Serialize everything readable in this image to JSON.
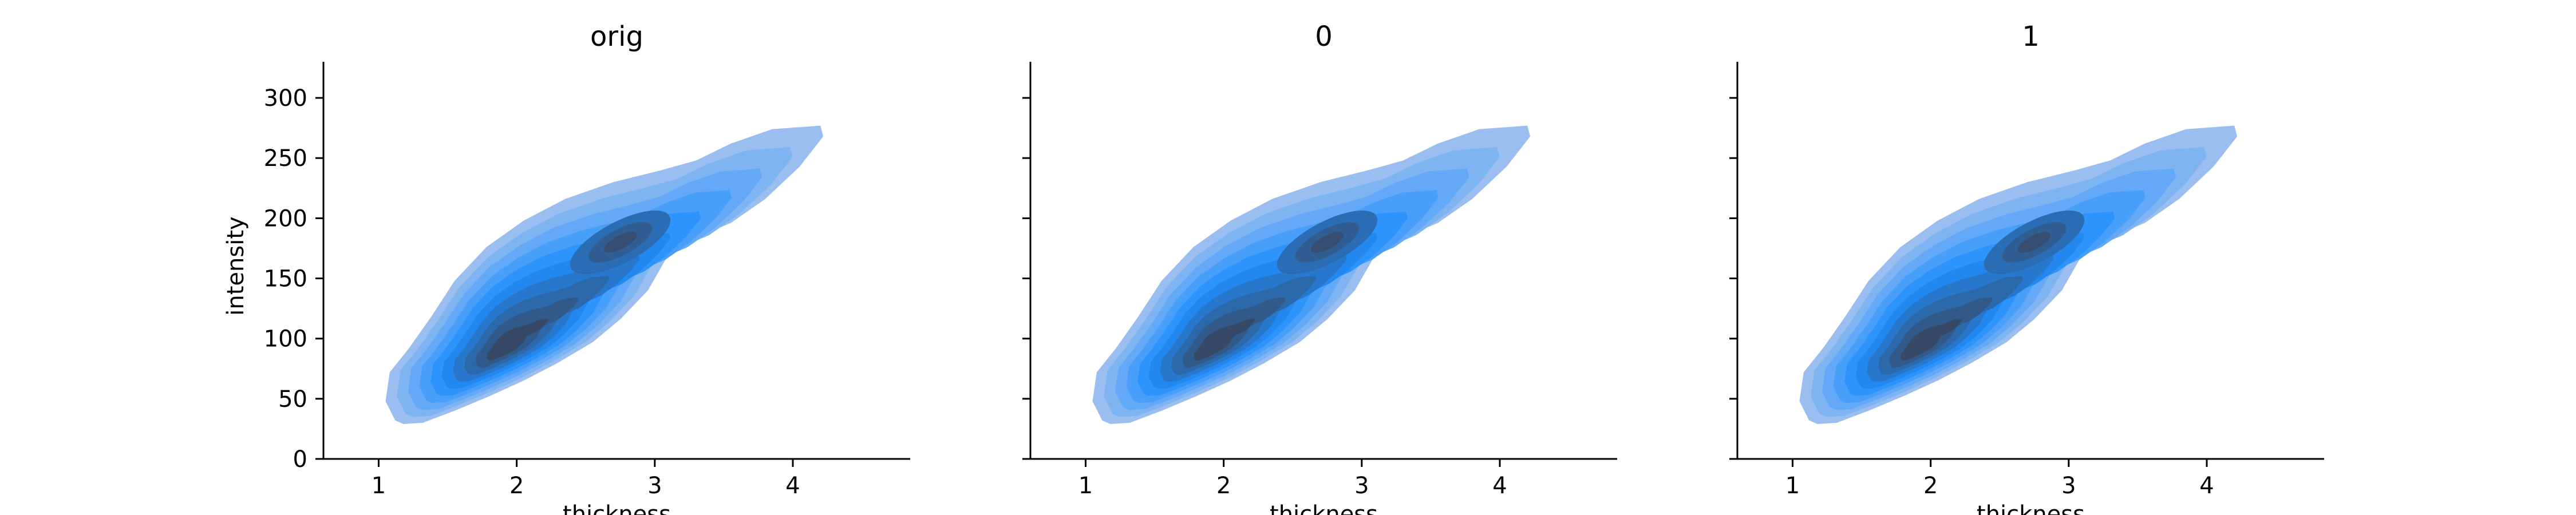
{
  "chart_data": [
    {
      "type": "kde-filled-contour",
      "title": "orig",
      "xlabel": "thickness",
      "ylabel": "intensity",
      "xlim": [
        0.6,
        4.85
      ],
      "ylim": [
        0,
        330
      ],
      "xticks": [
        1,
        2,
        3,
        4
      ],
      "yticks": [
        0,
        50,
        100,
        150,
        200,
        250,
        300
      ],
      "show_y_tick_labels": true,
      "density_peaks": [
        {
          "x": 2.0,
          "y": 100,
          "relative_density": 1.0
        },
        {
          "x": 2.75,
          "y": 180,
          "relative_density": 0.6
        }
      ],
      "support": {
        "x": [
          1.05,
          4.25
        ],
        "y": [
          30,
          280
        ]
      },
      "fill_color": "#1f8fff",
      "dark_color": "#364a68",
      "levels": 10,
      "grid": false
    },
    {
      "type": "kde-filled-contour",
      "title": "0",
      "xlabel": "thickness",
      "ylabel": "",
      "xlim": [
        0.6,
        4.85
      ],
      "ylim": [
        0,
        330
      ],
      "xticks": [
        1,
        2,
        3,
        4
      ],
      "yticks": [
        0,
        50,
        100,
        150,
        200,
        250,
        300
      ],
      "show_y_tick_labels": false,
      "density_peaks": [
        {
          "x": 2.0,
          "y": 100,
          "relative_density": 1.0
        },
        {
          "x": 2.75,
          "y": 180,
          "relative_density": 0.6
        }
      ],
      "support": {
        "x": [
          1.05,
          4.25
        ],
        "y": [
          30,
          280
        ]
      },
      "fill_color": "#1f8fff",
      "dark_color": "#364a68",
      "levels": 10,
      "grid": false
    },
    {
      "type": "kde-filled-contour",
      "title": "1",
      "xlabel": "thickness",
      "ylabel": "",
      "xlim": [
        0.6,
        4.85
      ],
      "ylim": [
        0,
        330
      ],
      "xticks": [
        1,
        2,
        3,
        4
      ],
      "yticks": [
        0,
        50,
        100,
        150,
        200,
        250,
        300
      ],
      "show_y_tick_labels": false,
      "density_peaks": [
        {
          "x": 2.0,
          "y": 100,
          "relative_density": 1.0
        },
        {
          "x": 2.75,
          "y": 180,
          "relative_density": 0.6
        }
      ],
      "support": {
        "x": [
          1.05,
          4.25
        ],
        "y": [
          30,
          280
        ]
      },
      "fill_color": "#1f8fff",
      "dark_color": "#364a68",
      "levels": 10,
      "grid": false
    }
  ]
}
